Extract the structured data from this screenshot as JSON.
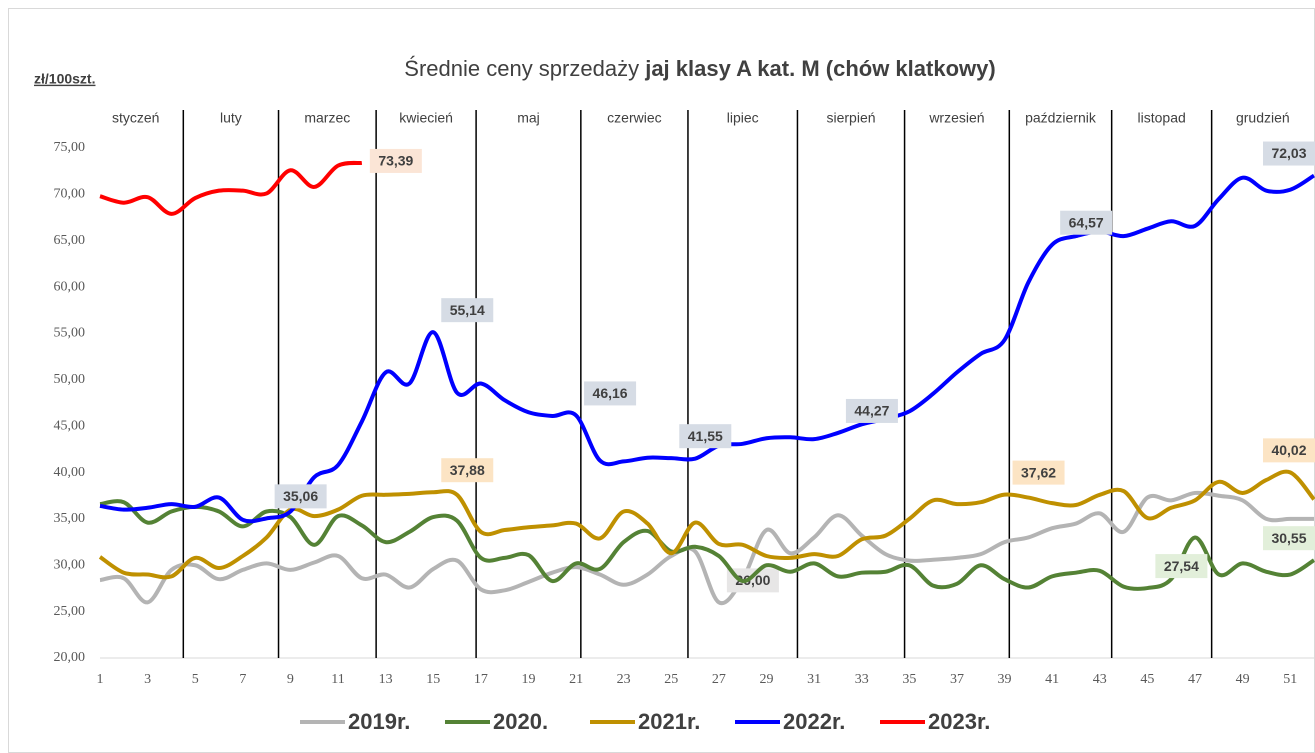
{
  "chart_data": {
    "type": "line",
    "title": "Średnie ceny sprzedaży",
    "title_emphasis": "jaj klasy A kat.  M (chów klatkowy)",
    "y_unit": "zł/100szt.",
    "months": [
      "styczeń",
      "luty",
      "marzec",
      "kwiecień",
      "maj",
      "czerwiec",
      "lipiec",
      "sierpień",
      "wrzesień",
      "październik",
      "listopad",
      "grudzień"
    ],
    "month_separators": [
      4.5,
      8.5,
      12.6,
      16.8,
      21.2,
      25.7,
      30.3,
      34.8,
      39.2,
      43.5,
      47.7
    ],
    "x": [
      1,
      2,
      3,
      4,
      5,
      6,
      7,
      8,
      9,
      10,
      11,
      12,
      13,
      14,
      15,
      16,
      17,
      18,
      19,
      20,
      21,
      22,
      23,
      24,
      25,
      26,
      27,
      28,
      29,
      30,
      31,
      32,
      33,
      34,
      35,
      36,
      37,
      38,
      39,
      40,
      41,
      42,
      43,
      44,
      45,
      46,
      47,
      48,
      49,
      50,
      51,
      52
    ],
    "xlim": [
      1,
      52
    ],
    "xticks": [
      1,
      3,
      5,
      7,
      9,
      11,
      13,
      15,
      17,
      19,
      21,
      23,
      25,
      27,
      29,
      31,
      33,
      35,
      37,
      39,
      41,
      43,
      45,
      47,
      49,
      51
    ],
    "ylim": [
      20,
      75
    ],
    "yticks": [
      {
        "value": 20,
        "label": "20,00"
      },
      {
        "value": 25,
        "label": "25,00"
      },
      {
        "value": 30,
        "label": "30,00"
      },
      {
        "value": 35,
        "label": "35,00"
      },
      {
        "value": 40,
        "label": "40,00"
      },
      {
        "value": 45,
        "label": "45,00"
      },
      {
        "value": 50,
        "label": "50,00"
      },
      {
        "value": 55,
        "label": "55,00"
      },
      {
        "value": 60,
        "label": "60,00"
      },
      {
        "value": 65,
        "label": "65,00"
      },
      {
        "value": 70,
        "label": "70,00"
      },
      {
        "value": 75,
        "label": "75,00"
      }
    ],
    "legend": "bottom",
    "series": [
      {
        "name": "2019r.",
        "color": "#b4b4b4",
        "label_fill": "#e7e6e6",
        "values": [
          28.4,
          28.6,
          26.0,
          29.5,
          30.0,
          28.5,
          29.5,
          30.2,
          29.5,
          30.3,
          31.0,
          28.6,
          29.0,
          27.6,
          29.6,
          30.5,
          27.4,
          27.3,
          28.2,
          29.2,
          29.8,
          29.0,
          27.9,
          29.0,
          31.0,
          31.5,
          26.0,
          28.5,
          33.8,
          31.3,
          33.0,
          35.4,
          33.2,
          31.2,
          30.5,
          30.6,
          30.8,
          31.2,
          32.5,
          33.0,
          34.0,
          34.5,
          35.6,
          33.6,
          37.3,
          37.0,
          37.8,
          37.5,
          37.0,
          35.0,
          35.0,
          35.0
        ],
        "value_labels": [
          null,
          null,
          null,
          null,
          null,
          null,
          null,
          null,
          null,
          null,
          null,
          null,
          null,
          null,
          null,
          null,
          null,
          null,
          null,
          null,
          null,
          null,
          null,
          null,
          null,
          null,
          "26,00",
          null,
          null,
          null,
          null,
          null,
          null,
          null,
          null,
          null,
          null,
          null,
          null,
          null,
          null,
          null,
          null,
          null,
          null,
          null,
          null,
          null,
          null,
          null,
          null,
          null
        ]
      },
      {
        "name": "2020.",
        "color": "#548235",
        "label_fill": "#e2efda",
        "values": [
          36.6,
          36.8,
          34.6,
          35.8,
          36.3,
          35.8,
          34.2,
          35.8,
          35.2,
          32.2,
          35.3,
          34.3,
          32.5,
          33.6,
          35.2,
          34.8,
          30.8,
          30.8,
          31.1,
          28.3,
          30.2,
          29.6,
          32.5,
          33.7,
          31.5,
          32.0,
          31.0,
          28.3,
          30.0,
          29.3,
          30.2,
          28.8,
          29.2,
          29.3,
          30.0,
          27.8,
          28.0,
          30.0,
          28.5,
          27.6,
          28.8,
          29.2,
          29.4,
          27.7,
          27.54,
          28.5,
          33.0,
          29.0,
          30.2,
          29.3,
          29.0,
          30.55
        ],
        "value_labels": [
          null,
          null,
          null,
          null,
          null,
          null,
          null,
          null,
          null,
          null,
          null,
          null,
          null,
          null,
          null,
          null,
          null,
          null,
          null,
          null,
          null,
          null,
          null,
          null,
          null,
          null,
          null,
          null,
          null,
          null,
          null,
          null,
          null,
          null,
          null,
          null,
          null,
          null,
          null,
          null,
          null,
          null,
          null,
          null,
          "27,54",
          null,
          null,
          null,
          null,
          null,
          null,
          "30,55"
        ]
      },
      {
        "name": "2021r.",
        "color": "#bf9000",
        "label_fill": "#fce4c4",
        "values": [
          30.9,
          29.2,
          29.0,
          28.8,
          30.8,
          29.7,
          31.0,
          33.0,
          36.0,
          35.3,
          36.0,
          37.5,
          37.6,
          37.7,
          37.88,
          37.6,
          33.6,
          33.8,
          34.1,
          34.3,
          34.5,
          32.9,
          35.8,
          34.5,
          31.3,
          34.6,
          32.3,
          32.2,
          31.0,
          30.8,
          31.2,
          31.0,
          32.8,
          33.2,
          35.0,
          37.0,
          36.6,
          36.8,
          37.62,
          37.3,
          36.7,
          36.5,
          37.6,
          38.0,
          35.1,
          36.2,
          37.0,
          39.0,
          37.8,
          39.2,
          40.02,
          37.1
        ],
        "value_labels": [
          null,
          null,
          null,
          null,
          null,
          null,
          null,
          null,
          null,
          null,
          null,
          null,
          null,
          null,
          "37,88",
          null,
          null,
          null,
          null,
          null,
          null,
          null,
          null,
          null,
          null,
          null,
          null,
          null,
          null,
          null,
          null,
          null,
          null,
          null,
          null,
          null,
          null,
          null,
          "37,62",
          null,
          null,
          null,
          null,
          null,
          null,
          null,
          null,
          null,
          null,
          null,
          "40,02",
          null
        ]
      },
      {
        "name": "2022r.",
        "color": "#0000ff",
        "label_fill": "#d6dce5",
        "values": [
          36.4,
          36.0,
          36.2,
          36.6,
          36.3,
          37.3,
          34.9,
          35.06,
          35.8,
          39.5,
          40.8,
          45.5,
          50.8,
          49.6,
          55.14,
          48.6,
          49.6,
          47.8,
          46.5,
          46.1,
          46.16,
          41.3,
          41.2,
          41.6,
          41.55,
          41.5,
          42.9,
          43.1,
          43.7,
          43.8,
          43.6,
          44.27,
          45.2,
          45.8,
          46.6,
          48.5,
          50.8,
          52.8,
          54.3,
          60.5,
          64.57,
          65.5,
          66.0,
          65.5,
          66.3,
          67.1,
          66.6,
          69.5,
          71.8,
          70.4,
          70.5,
          72.03
        ],
        "value_labels": [
          null,
          null,
          null,
          null,
          null,
          null,
          null,
          "35,06",
          null,
          null,
          null,
          null,
          null,
          null,
          "55,14",
          null,
          null,
          null,
          null,
          null,
          "46,16",
          null,
          null,
          null,
          "41,55",
          null,
          null,
          null,
          null,
          null,
          null,
          "44,27",
          null,
          null,
          null,
          null,
          null,
          null,
          null,
          null,
          "64,57",
          null,
          null,
          null,
          null,
          null,
          null,
          null,
          null,
          null,
          null,
          "72,03"
        ]
      },
      {
        "name": "2023r.",
        "color": "#ff0000",
        "label_fill": "#fbe5d6",
        "values": [
          69.8,
          69.1,
          69.7,
          67.9,
          69.6,
          70.4,
          70.4,
          70.1,
          72.6,
          70.8,
          73.1,
          73.39,
          null,
          null,
          null,
          null,
          null,
          null,
          null,
          null,
          null,
          null,
          null,
          null,
          null,
          null,
          null,
          null,
          null,
          null,
          null,
          null,
          null,
          null,
          null,
          null,
          null,
          null,
          null,
          null,
          null,
          null,
          null,
          null,
          null,
          null,
          null,
          null,
          null,
          null,
          null,
          null
        ],
        "value_labels": [
          null,
          null,
          null,
          null,
          null,
          null,
          null,
          null,
          null,
          null,
          null,
          "73,39",
          null,
          null,
          null,
          null,
          null,
          null,
          null,
          null,
          null,
          null,
          null,
          null,
          null,
          null,
          null,
          null,
          null,
          null,
          null,
          null,
          null,
          null,
          null,
          null,
          null,
          null,
          null,
          null,
          null,
          null,
          null,
          null,
          null,
          null,
          null,
          null,
          null,
          null,
          null,
          null
        ]
      }
    ]
  }
}
